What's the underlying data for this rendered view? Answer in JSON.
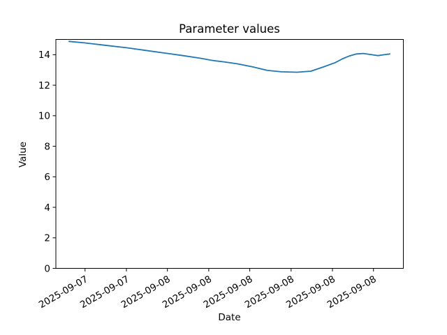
{
  "chart_data": {
    "type": "line",
    "title": "Parameter values",
    "xlabel": "Date",
    "ylabel": "Value",
    "ylim": [
      0,
      15
    ],
    "grid": false,
    "legend": "none",
    "background": "#ffffff",
    "axis_color": "#000000",
    "y_ticks": [
      0,
      2,
      4,
      6,
      8,
      10,
      12,
      14
    ],
    "x_tick_labels": [
      "2025-09-07",
      "2025-09-07",
      "2025-09-08",
      "2025-09-08",
      "2025-09-08",
      "2025-09-08",
      "2025-09-08",
      "2025-09-08"
    ],
    "x_tick_positions": [
      0.084,
      0.203,
      0.321,
      0.44,
      0.558,
      0.677,
      0.796,
      0.914
    ],
    "x_tick_rotation_deg": 30,
    "series": [
      {
        "name": "Parameter values",
        "color": "#1f77b4",
        "line_width": 1.8,
        "points": [
          [
            0.038,
            14.87
          ],
          [
            0.084,
            14.77
          ],
          [
            0.141,
            14.62
          ],
          [
            0.205,
            14.45
          ],
          [
            0.265,
            14.26
          ],
          [
            0.322,
            14.08
          ],
          [
            0.366,
            13.94
          ],
          [
            0.418,
            13.76
          ],
          [
            0.452,
            13.62
          ],
          [
            0.487,
            13.52
          ],
          [
            0.523,
            13.4
          ],
          [
            0.567,
            13.2
          ],
          [
            0.609,
            12.97
          ],
          [
            0.649,
            12.88
          ],
          [
            0.694,
            12.85
          ],
          [
            0.734,
            12.92
          ],
          [
            0.77,
            13.2
          ],
          [
            0.804,
            13.48
          ],
          [
            0.824,
            13.72
          ],
          [
            0.845,
            13.92
          ],
          [
            0.865,
            14.05
          ],
          [
            0.885,
            14.08
          ],
          [
            0.909,
            14.0
          ],
          [
            0.927,
            13.94
          ],
          [
            0.945,
            14.0
          ],
          [
            0.961,
            14.05
          ]
        ]
      }
    ]
  }
}
